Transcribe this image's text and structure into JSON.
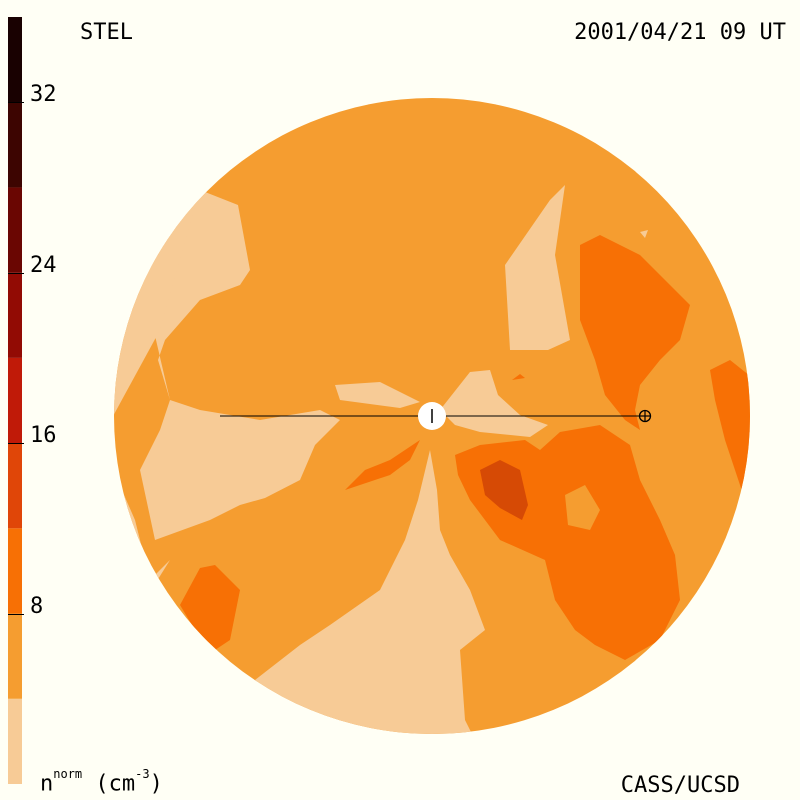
{
  "header": {
    "instrument": "STEL",
    "datetime": "2001/04/21 09 UT"
  },
  "footer": {
    "credit": "CASS/UCSD",
    "unit_base": "n",
    "unit_sup": "norm",
    "unit_tail": " (cm",
    "unit_exp": "-3",
    "unit_close": ")"
  },
  "colorbar": {
    "ticks": [
      "32",
      "24",
      "16",
      "8"
    ],
    "tick_values": [
      32,
      24,
      16,
      8
    ],
    "range": [
      0,
      36
    ],
    "bands": [
      {
        "from": 0,
        "to": 4,
        "color": "#f7cb96"
      },
      {
        "from": 4,
        "to": 8,
        "color": "#f59d30"
      },
      {
        "from": 8,
        "to": 12,
        "color": "#f77005"
      },
      {
        "from": 12,
        "to": 16,
        "color": "#e04608"
      },
      {
        "from": 16,
        "to": 20,
        "color": "#c01a08"
      },
      {
        "from": 20,
        "to": 24,
        "color": "#920b04"
      },
      {
        "from": 24,
        "to": 28,
        "color": "#6a0602"
      },
      {
        "from": 28,
        "to": 32,
        "color": "#3d0501"
      },
      {
        "from": 32,
        "to": 36,
        "color": "#190101"
      }
    ]
  },
  "colors": {
    "background": "#fffff5",
    "level_1": "#f7cb96",
    "level_2": "#f59d30",
    "level_3": "#f77005",
    "level_4": "#d64a05"
  },
  "icons": {
    "sun": "sun-icon",
    "earth": "earth-icon"
  }
}
